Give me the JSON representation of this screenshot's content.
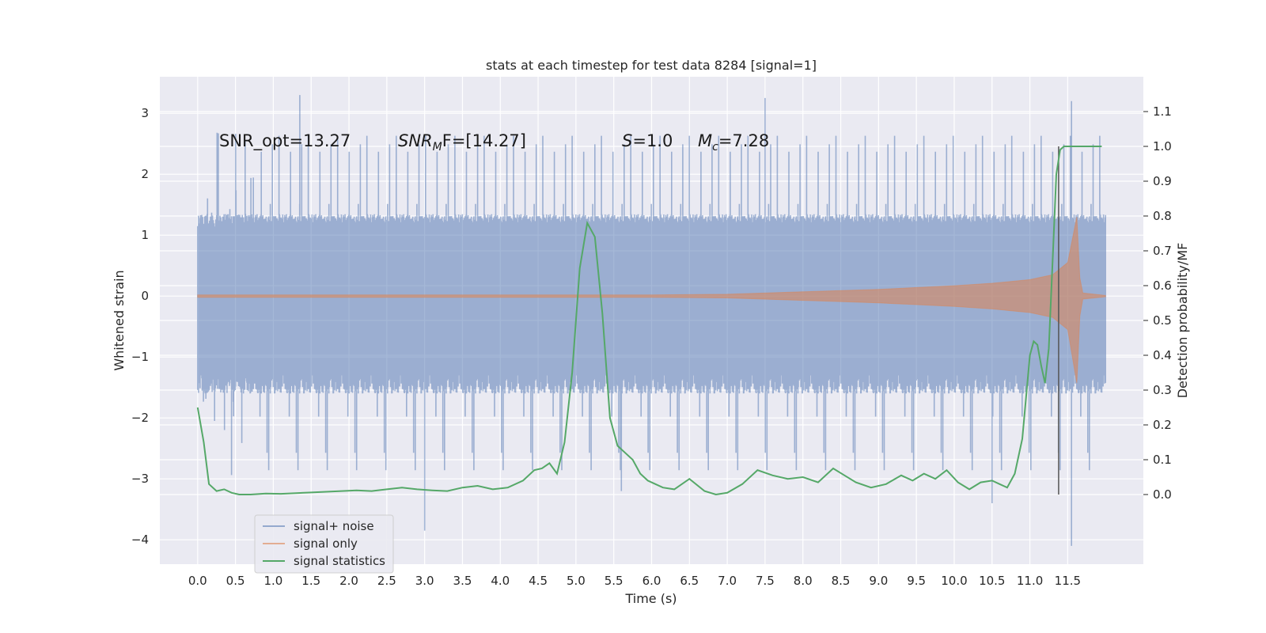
{
  "chart_data": {
    "type": "line",
    "title": "stats at each timestep for test data 8284 [signal=1]",
    "xlabel": "Time (s)",
    "ylabel_left": "Whitened strain",
    "ylabel_right": "Detection probability/MF",
    "xlim": [
      -0.5,
      12.5
    ],
    "ylim_left": [
      -4.4,
      3.6
    ],
    "ylim_right": [
      -0.2,
      1.2
    ],
    "x_ticks": [
      "0.0",
      "0.5",
      "1.0",
      "1.5",
      "2.0",
      "2.5",
      "3.0",
      "3.5",
      "4.0",
      "4.5",
      "5.0",
      "5.5",
      "6.0",
      "6.5",
      "7.0",
      "7.5",
      "8.0",
      "8.5",
      "9.0",
      "9.5",
      "10.0",
      "10.5",
      "11.0",
      "11.5"
    ],
    "y_ticks_left": [
      "3",
      "2",
      "1",
      "0",
      "−1",
      "−2",
      "−3",
      "−4"
    ],
    "y_ticks_right": [
      "1.1",
      "1.0",
      "0.9",
      "0.8",
      "0.7",
      "0.6",
      "0.5",
      "0.4",
      "0.3",
      "0.2",
      "0.1",
      "0.0"
    ],
    "grid": true,
    "legend_position": "lower-left",
    "annotations": {
      "snr_opt": "SNR_opt=13.27",
      "snr_mf_base": "SNR",
      "snr_mf_sub": "M",
      "snr_mf_rest": "F=[14.27]",
      "s_sym": "S",
      "s_val": "=1.0",
      "mc_sym": "M",
      "mc_sub": "c",
      "mc_val": "=7.28"
    },
    "merger_time": 11.38,
    "series": [
      {
        "name": "signal+ noise",
        "color": "#4c72b0",
        "description_points": {
          "x_range": [
            0.0,
            12.0
          ],
          "typical_range": [
            -1.6,
            1.35
          ],
          "peak_max": 3.3,
          "peak_min": -4.1
        }
      },
      {
        "name": "signal only",
        "color": "#dd8452",
        "envelope": {
          "x": [
            0.0,
            6.0,
            7.0,
            8.0,
            9.0,
            10.0,
            10.5,
            11.0,
            11.3,
            11.5,
            11.62,
            11.66,
            11.7,
            12.0
          ],
          "amp": [
            0.02,
            0.02,
            0.03,
            0.07,
            0.11,
            0.17,
            0.21,
            0.27,
            0.35,
            0.55,
            1.3,
            0.3,
            0.05,
            0.01
          ]
        }
      },
      {
        "name": "signal statistics",
        "color": "#55a868",
        "x": [
          0.0,
          0.08,
          0.15,
          0.25,
          0.35,
          0.45,
          0.55,
          0.7,
          0.9,
          1.1,
          1.3,
          1.5,
          1.7,
          1.9,
          2.1,
          2.3,
          2.5,
          2.7,
          2.9,
          3.1,
          3.3,
          3.5,
          3.7,
          3.9,
          4.1,
          4.3,
          4.45,
          4.55,
          4.65,
          4.75,
          4.85,
          4.95,
          5.05,
          5.15,
          5.25,
          5.35,
          5.45,
          5.55,
          5.65,
          5.75,
          5.85,
          5.95,
          6.05,
          6.15,
          6.3,
          6.5,
          6.7,
          6.85,
          7.0,
          7.2,
          7.4,
          7.6,
          7.8,
          8.0,
          8.2,
          8.4,
          8.55,
          8.7,
          8.9,
          9.1,
          9.3,
          9.45,
          9.6,
          9.75,
          9.9,
          10.05,
          10.2,
          10.35,
          10.5,
          10.6,
          10.7,
          10.8,
          10.9,
          11.0,
          11.05,
          11.1,
          11.15,
          11.2,
          11.25,
          11.3,
          11.35,
          11.4,
          11.45,
          11.5,
          11.6,
          11.7,
          11.8,
          11.9,
          11.95
        ],
        "values": [
          0.25,
          0.15,
          0.03,
          0.01,
          0.015,
          0.005,
          0.0,
          0.0,
          0.003,
          0.002,
          0.004,
          0.006,
          0.008,
          0.01,
          0.012,
          0.01,
          0.015,
          0.02,
          0.015,
          0.012,
          0.01,
          0.02,
          0.025,
          0.015,
          0.02,
          0.04,
          0.07,
          0.075,
          0.09,
          0.06,
          0.15,
          0.35,
          0.65,
          0.78,
          0.74,
          0.52,
          0.22,
          0.14,
          0.12,
          0.1,
          0.06,
          0.04,
          0.03,
          0.02,
          0.015,
          0.045,
          0.01,
          0.0,
          0.005,
          0.03,
          0.07,
          0.055,
          0.045,
          0.05,
          0.035,
          0.075,
          0.055,
          0.035,
          0.02,
          0.03,
          0.055,
          0.04,
          0.06,
          0.045,
          0.07,
          0.035,
          0.015,
          0.035,
          0.04,
          0.03,
          0.02,
          0.06,
          0.16,
          0.4,
          0.44,
          0.43,
          0.37,
          0.32,
          0.42,
          0.67,
          0.92,
          0.99,
          1.0,
          1.0,
          1.0,
          1.0,
          1.0,
          1.0,
          1.0
        ]
      }
    ]
  }
}
